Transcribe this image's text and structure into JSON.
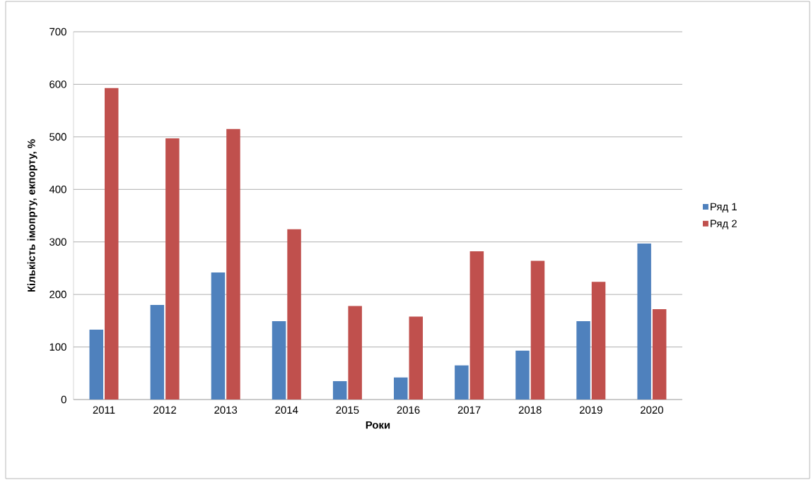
{
  "chart_data": {
    "type": "bar",
    "xlabel": "Роки",
    "ylabel": "Кількість імопрту, екпорту, %",
    "categories": [
      "2011",
      "2012",
      "2013",
      "2014",
      "2015",
      "2016",
      "2017",
      "2018",
      "2019",
      "2020"
    ],
    "series": [
      {
        "name": "Ряд 1",
        "color": "#4f81bd",
        "values": [
          133,
          180,
          242,
          149,
          35,
          42,
          65,
          93,
          149,
          297
        ]
      },
      {
        "name": "Ряд 2",
        "color": "#c0504d",
        "values": [
          593,
          497,
          515,
          324,
          178,
          158,
          282,
          264,
          224,
          172
        ]
      }
    ],
    "ylim": [
      0,
      700
    ],
    "yticks": [
      0,
      100,
      200,
      300,
      400,
      500,
      600,
      700
    ],
    "grid": "y",
    "legend": "right"
  }
}
